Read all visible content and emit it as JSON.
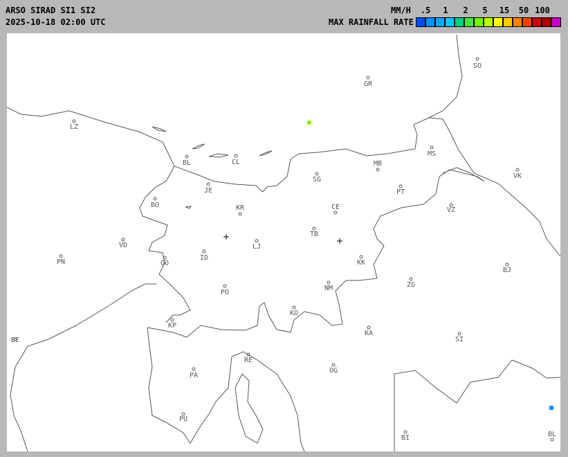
{
  "header": {
    "title": "ARSO SIRAD SI1 SI2",
    "timestamp": "2025-10-18 02:00 UTC",
    "units": "MM/H",
    "legend_title": "MAX RAINFALL RATE"
  },
  "legend": {
    "ticks": [
      ".5",
      "1",
      "2",
      "5",
      "15",
      "50",
      "100"
    ],
    "colors": [
      "#0050ff",
      "#0090ff",
      "#00a8ff",
      "#00c8ff",
      "#00d080",
      "#40e840",
      "#70ff00",
      "#b8ff00",
      "#ffff00",
      "#ffc800",
      "#ff8000",
      "#ff4000",
      "#d00000",
      "#b00000",
      "#c800c8"
    ]
  },
  "map": {
    "line_color": "#555555",
    "cities": [
      "SO",
      "GR",
      "LZ",
      "MS",
      "BL",
      "CL",
      "MB",
      "VK",
      "SG",
      "JE",
      "PT",
      "BO",
      "KR",
      "CE",
      "VZ",
      "TB",
      "VD",
      "LJ",
      "ID",
      "PN",
      "GO",
      "KK",
      "BJ",
      "ZG",
      "NM",
      "PO",
      "KO",
      "KP",
      "KA",
      "SI",
      "BE",
      "RE",
      "OG",
      "PA",
      "PU",
      "BI",
      "BL"
    ],
    "radar_sites": 2,
    "echoes": [
      {
        "color": "#b8ff00"
      },
      {
        "color": "#0090ff"
      }
    ]
  }
}
